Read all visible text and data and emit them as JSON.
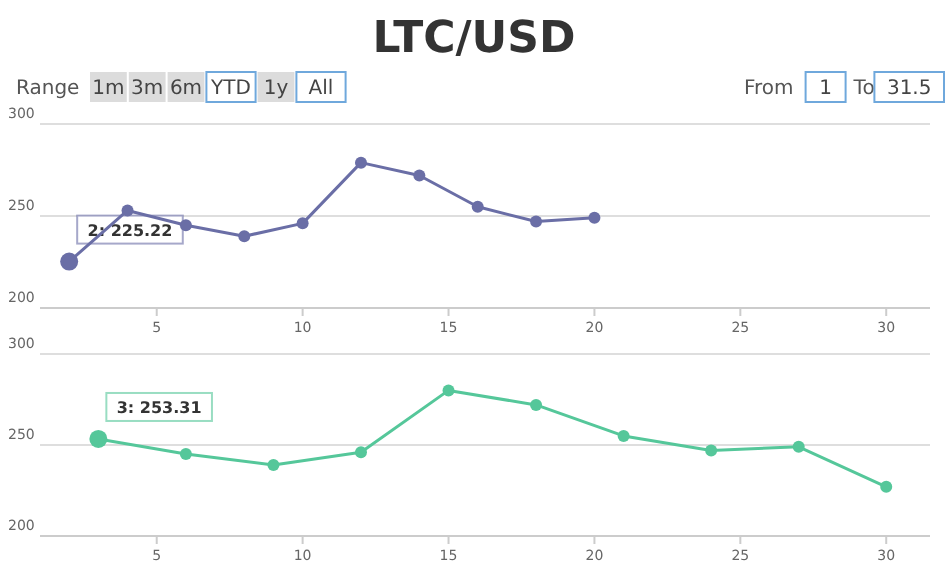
{
  "chart_data": [
    {
      "type": "line",
      "title": "LTC/USD",
      "x": [
        2,
        4,
        6,
        8,
        10,
        12,
        14,
        16,
        18,
        20
      ],
      "series": [
        {
          "color": "#6a6ea6",
          "values": [
            225.22,
            253,
            245,
            239,
            246,
            279,
            272,
            255,
            247,
            249
          ]
        }
      ],
      "xlim": [
        1,
        31.5
      ],
      "xticks": [
        5,
        10,
        15,
        20,
        25,
        30
      ],
      "ylim": [
        200,
        300
      ],
      "yticks": [
        200,
        250,
        300
      ],
      "grid": "y",
      "marker": "circle",
      "line_style": "solid",
      "annotations": [
        "Range",
        "1m",
        "3m",
        "6m",
        "YTD",
        "1y",
        "All",
        "From",
        "1",
        "To",
        "31.5",
        {
          "text": "2: 225.22",
          "x": 2,
          "y": 225.22
        }
      ]
    },
    {
      "type": "line",
      "x": [
        3,
        6,
        9,
        12,
        15,
        18,
        21,
        24,
        27,
        30
      ],
      "series": [
        {
          "color": "#55c79a",
          "values": [
            253.31,
            245,
            239,
            246,
            280,
            272,
            255,
            247,
            249,
            227
          ]
        }
      ],
      "xlim": [
        1,
        31.5
      ],
      "xticks": [
        5,
        10,
        15,
        20,
        25,
        30
      ],
      "ylim": [
        200,
        300
      ],
      "yticks": [
        200,
        250,
        300
      ],
      "grid": "y",
      "marker": "circle",
      "line_style": "solid",
      "annotations": [
        {
          "text": "3: 253.31",
          "x": 3,
          "y": 253.31
        }
      ]
    }
  ]
}
